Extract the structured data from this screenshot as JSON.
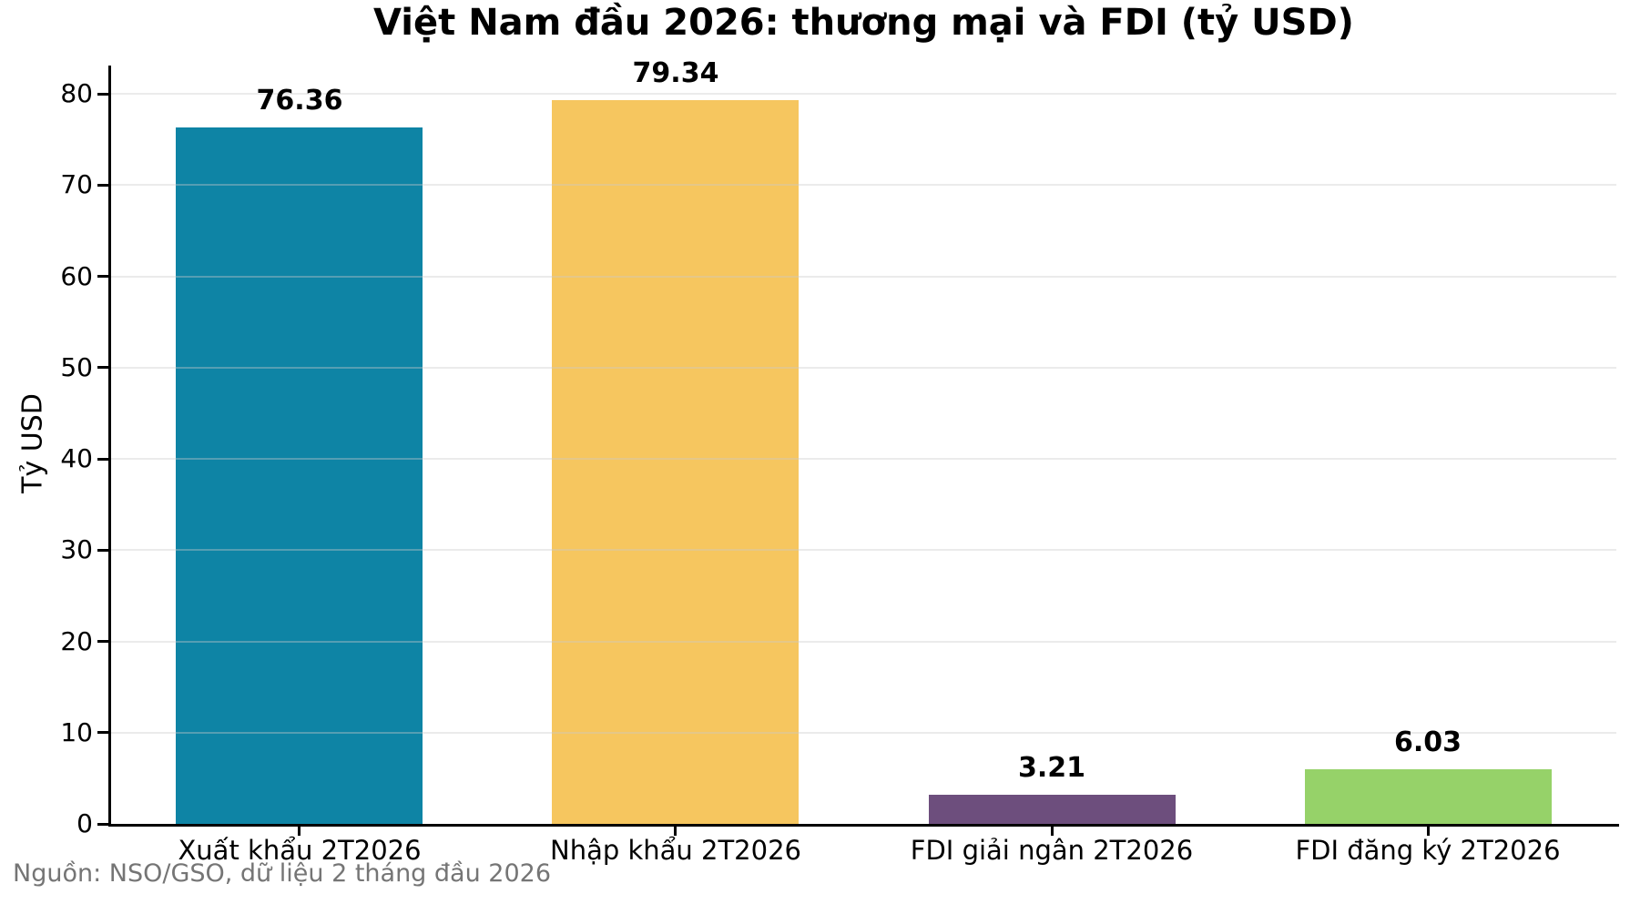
{
  "chart_data": {
    "type": "bar",
    "title": "Việt Nam đầu 2026: thương mại và FDI (tỷ USD)",
    "ylabel": "Tỷ USD",
    "xlabel": "",
    "categories": [
      "Xuất khẩu 2T2026",
      "Nhập khẩu 2T2026",
      "FDI giải ngân 2T2026",
      "FDI đăng ký 2T2026"
    ],
    "values": [
      76.36,
      79.34,
      3.21,
      6.03
    ],
    "bar_labels": [
      "76.36",
      "79.34",
      "3.21",
      "6.03"
    ],
    "bar_colors": [
      "#0e84a5",
      "#f6c65f",
      "#6d4e7d",
      "#96d269"
    ],
    "yticks": [
      0,
      10,
      20,
      30,
      40,
      50,
      60,
      70,
      80
    ],
    "ylim": [
      0,
      83.1
    ],
    "grid": "horizontal",
    "legend": "none",
    "source": "Nguồn: NSO/GSO, dữ liệu 2 tháng đầu 2026"
  }
}
